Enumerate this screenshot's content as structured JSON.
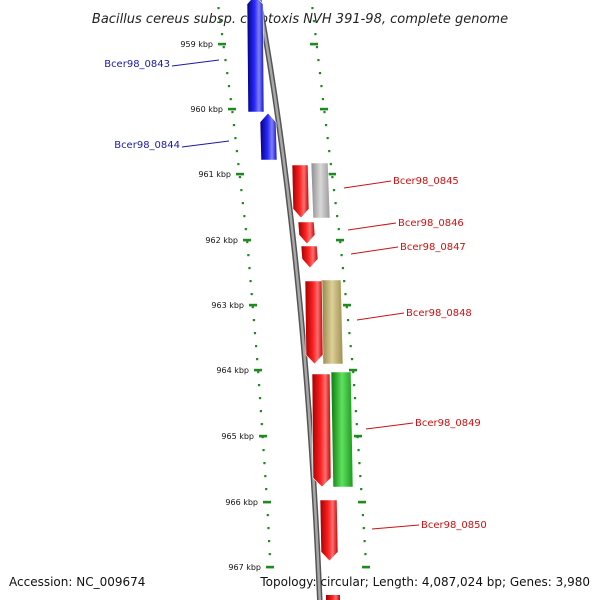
{
  "title": "Bacillus cereus subsp. cytotoxis NVH 391-98, complete genome",
  "footer": {
    "accession": "Accession: NC_009674",
    "summary": "Topology: circular; Length: 4,087,024 bp; Genes: 3,980"
  },
  "scale_ticks": [
    {
      "label": "959 kbp"
    },
    {
      "label": "960 kbp"
    },
    {
      "label": "961 kbp"
    },
    {
      "label": "962 kbp"
    },
    {
      "label": "963 kbp"
    },
    {
      "label": "964 kbp"
    },
    {
      "label": "965 kbp"
    },
    {
      "label": "966 kbp"
    },
    {
      "label": "967 kbp"
    }
  ],
  "genes": [
    {
      "label": "Bcer98_0843",
      "strand": "reverse",
      "color": "#1a1aee"
    },
    {
      "label": "Bcer98_0844",
      "strand": "reverse",
      "color": "#1a1aee"
    },
    {
      "label": "Bcer98_0845",
      "strand": "forward",
      "color": "#ee1a1a"
    },
    {
      "label": "Bcer98_0846",
      "strand": "forward",
      "color": "#ee1a1a"
    },
    {
      "label": "Bcer98_0847",
      "strand": "forward",
      "color": "#ee1a1a"
    },
    {
      "label": "Bcer98_0848",
      "strand": "forward",
      "color": "#ee1a1a"
    },
    {
      "label": "Bcer98_0849",
      "strand": "forward",
      "color": "#ee1a1a"
    },
    {
      "label": "Bcer98_0850",
      "strand": "forward",
      "color": "#ee1a1a"
    }
  ],
  "cog_colors": {
    "grey": "#b8b8b8",
    "tan": "#c8b878",
    "green": "#2ec02e"
  },
  "colors": {
    "reverse_label": "#1a1aaa",
    "forward_label": "#cc1111",
    "backbone": "#888888",
    "ticks": "#1f8a1f"
  }
}
